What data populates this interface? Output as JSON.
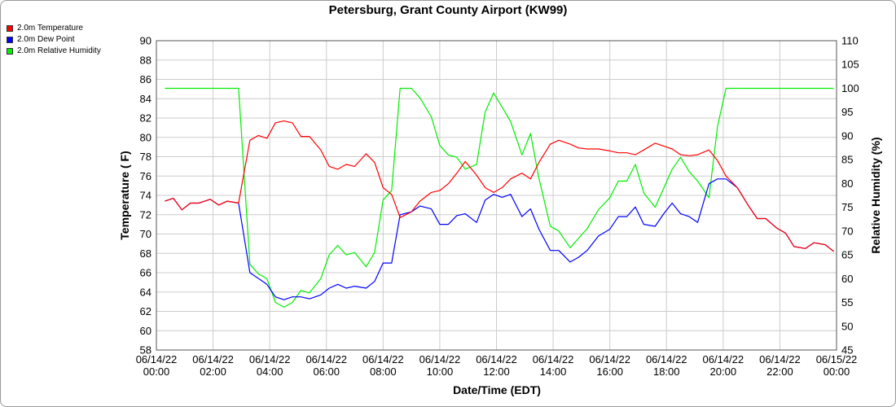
{
  "chart_data": {
    "type": "line",
    "title": "Petersburg, Grant County Airport (KW99)",
    "xlabel": "Date/Time (EDT)",
    "ylabel": "Temperature ( F)",
    "y2label": "Relative Humidity (%)",
    "ylim": [
      58,
      90
    ],
    "y2lim": [
      45,
      110
    ],
    "yticks": [
      58,
      60,
      62,
      64,
      66,
      68,
      70,
      72,
      74,
      76,
      78,
      80,
      82,
      84,
      86,
      88,
      90
    ],
    "y2ticks": [
      45,
      50,
      55,
      60,
      65,
      70,
      75,
      80,
      85,
      90,
      95,
      100,
      105,
      110
    ],
    "xlim": [
      0,
      24
    ],
    "xticks": [
      {
        "x": 0,
        "date": "06/14/22",
        "time": "00:00"
      },
      {
        "x": 2,
        "date": "06/14/22",
        "time": "02:00"
      },
      {
        "x": 4,
        "date": "06/14/22",
        "time": "04:00"
      },
      {
        "x": 6,
        "date": "06/14/22",
        "time": "06:00"
      },
      {
        "x": 8,
        "date": "06/14/22",
        "time": "08:00"
      },
      {
        "x": 10,
        "date": "06/14/22",
        "time": "10:00"
      },
      {
        "x": 12,
        "date": "06/14/22",
        "time": "12:00"
      },
      {
        "x": 14,
        "date": "06/14/22",
        "time": "14:00"
      },
      {
        "x": 16,
        "date": "06/14/22",
        "time": "16:00"
      },
      {
        "x": 18,
        "date": "06/14/22",
        "time": "18:00"
      },
      {
        "x": 20,
        "date": "06/14/22",
        "time": "20:00"
      },
      {
        "x": 22,
        "date": "06/14/22",
        "time": "22:00"
      },
      {
        "x": 24,
        "date": "06/15/22",
        "time": "00:00"
      }
    ],
    "grid": true,
    "legend_position": "top-left",
    "series": [
      {
        "name": "2.0m Temperature",
        "color": "#ff0000",
        "axis": "left",
        "points": [
          [
            0.3,
            73.4
          ],
          [
            0.6,
            73.7
          ],
          [
            0.9,
            72.5
          ],
          [
            1.2,
            73.2
          ],
          [
            1.5,
            73.2
          ],
          [
            1.9,
            73.6
          ],
          [
            2.2,
            73.0
          ],
          [
            2.5,
            73.4
          ],
          [
            2.9,
            73.2
          ],
          [
            3.3,
            79.7
          ],
          [
            3.6,
            80.2
          ],
          [
            3.9,
            79.9
          ],
          [
            4.2,
            81.5
          ],
          [
            4.5,
            81.7
          ],
          [
            4.8,
            81.5
          ],
          [
            5.1,
            80.1
          ],
          [
            5.4,
            80.1
          ],
          [
            5.8,
            78.7
          ],
          [
            6.1,
            77.0
          ],
          [
            6.4,
            76.7
          ],
          [
            6.7,
            77.2
          ],
          [
            7.0,
            77.0
          ],
          [
            7.4,
            78.3
          ],
          [
            7.7,
            77.4
          ],
          [
            8.0,
            74.8
          ],
          [
            8.3,
            74.1
          ],
          [
            8.6,
            71.7
          ],
          [
            9.0,
            72.3
          ],
          [
            9.3,
            73.4
          ],
          [
            9.7,
            74.3
          ],
          [
            10.0,
            74.5
          ],
          [
            10.3,
            75.2
          ],
          [
            10.6,
            76.3
          ],
          [
            10.9,
            77.5
          ],
          [
            11.3,
            76.1
          ],
          [
            11.6,
            74.8
          ],
          [
            11.9,
            74.3
          ],
          [
            12.2,
            74.8
          ],
          [
            12.5,
            75.7
          ],
          [
            12.9,
            76.3
          ],
          [
            13.2,
            75.7
          ],
          [
            13.5,
            77.4
          ],
          [
            13.9,
            79.3
          ],
          [
            14.2,
            79.7
          ],
          [
            14.6,
            79.3
          ],
          [
            14.9,
            78.9
          ],
          [
            15.2,
            78.8
          ],
          [
            15.6,
            78.8
          ],
          [
            16.0,
            78.6
          ],
          [
            16.3,
            78.4
          ],
          [
            16.6,
            78.4
          ],
          [
            16.9,
            78.2
          ],
          [
            17.2,
            78.7
          ],
          [
            17.6,
            79.4
          ],
          [
            17.9,
            79.1
          ],
          [
            18.2,
            78.8
          ],
          [
            18.5,
            78.2
          ],
          [
            18.8,
            78.1
          ],
          [
            19.1,
            78.2
          ],
          [
            19.5,
            78.7
          ],
          [
            19.8,
            77.6
          ],
          [
            20.1,
            76.0
          ],
          [
            20.5,
            74.8
          ],
          [
            20.9,
            72.9
          ],
          [
            21.2,
            71.6
          ],
          [
            21.5,
            71.6
          ],
          [
            21.9,
            70.6
          ],
          [
            22.2,
            70.1
          ],
          [
            22.5,
            68.7
          ],
          [
            22.9,
            68.5
          ],
          [
            23.2,
            69.1
          ],
          [
            23.6,
            68.9
          ],
          [
            23.9,
            68.2
          ]
        ]
      },
      {
        "name": "2.0m Dew Point",
        "color": "#0000ff",
        "axis": "left",
        "points": [
          [
            0.3,
            73.4
          ],
          [
            0.6,
            73.7
          ],
          [
            0.9,
            72.5
          ],
          [
            1.2,
            73.2
          ],
          [
            1.5,
            73.2
          ],
          [
            1.9,
            73.6
          ],
          [
            2.2,
            73.0
          ],
          [
            2.5,
            73.4
          ],
          [
            2.9,
            73.2
          ],
          [
            3.3,
            66.0
          ],
          [
            3.6,
            65.4
          ],
          [
            3.9,
            64.8
          ],
          [
            4.2,
            63.5
          ],
          [
            4.5,
            63.2
          ],
          [
            4.8,
            63.5
          ],
          [
            5.1,
            63.5
          ],
          [
            5.4,
            63.3
          ],
          [
            5.8,
            63.7
          ],
          [
            6.1,
            64.4
          ],
          [
            6.4,
            64.8
          ],
          [
            6.7,
            64.4
          ],
          [
            7.0,
            64.6
          ],
          [
            7.4,
            64.4
          ],
          [
            7.7,
            65.1
          ],
          [
            8.0,
            67.0
          ],
          [
            8.3,
            67.0
          ],
          [
            8.6,
            72.0
          ],
          [
            9.0,
            72.3
          ],
          [
            9.3,
            72.9
          ],
          [
            9.7,
            72.6
          ],
          [
            10.0,
            71.0
          ],
          [
            10.3,
            71.0
          ],
          [
            10.6,
            71.9
          ],
          [
            10.9,
            72.1
          ],
          [
            11.3,
            71.2
          ],
          [
            11.6,
            73.5
          ],
          [
            11.9,
            74.1
          ],
          [
            12.2,
            73.8
          ],
          [
            12.5,
            74.1
          ],
          [
            12.9,
            71.8
          ],
          [
            13.2,
            72.6
          ],
          [
            13.5,
            70.5
          ],
          [
            13.9,
            68.3
          ],
          [
            14.2,
            68.3
          ],
          [
            14.6,
            67.1
          ],
          [
            14.9,
            67.6
          ],
          [
            15.2,
            68.3
          ],
          [
            15.6,
            69.8
          ],
          [
            16.0,
            70.5
          ],
          [
            16.3,
            71.8
          ],
          [
            16.6,
            71.8
          ],
          [
            16.9,
            72.8
          ],
          [
            17.2,
            71.0
          ],
          [
            17.6,
            70.8
          ],
          [
            17.9,
            72.1
          ],
          [
            18.2,
            73.2
          ],
          [
            18.5,
            72.1
          ],
          [
            18.8,
            71.8
          ],
          [
            19.1,
            71.2
          ],
          [
            19.5,
            75.2
          ],
          [
            19.8,
            75.7
          ],
          [
            20.1,
            75.7
          ],
          [
            20.5,
            74.8
          ],
          [
            20.9,
            72.9
          ],
          [
            21.2,
            71.6
          ],
          [
            21.5,
            71.6
          ],
          [
            21.9,
            70.6
          ],
          [
            22.2,
            70.1
          ],
          [
            22.5,
            68.7
          ],
          [
            22.9,
            68.5
          ],
          [
            23.2,
            69.1
          ],
          [
            23.6,
            68.9
          ],
          [
            23.9,
            68.2
          ]
        ]
      },
      {
        "name": "2.0m Relative Humidity",
        "color": "#00ee00",
        "axis": "right",
        "points": [
          [
            0.3,
            100
          ],
          [
            1.0,
            100
          ],
          [
            2.0,
            100
          ],
          [
            2.9,
            100
          ],
          [
            3.3,
            63
          ],
          [
            3.6,
            61
          ],
          [
            3.9,
            60
          ],
          [
            4.2,
            55
          ],
          [
            4.5,
            54
          ],
          [
            4.8,
            55
          ],
          [
            5.1,
            57.5
          ],
          [
            5.4,
            57
          ],
          [
            5.8,
            60
          ],
          [
            6.1,
            65
          ],
          [
            6.4,
            67
          ],
          [
            6.7,
            65
          ],
          [
            7.0,
            65.5
          ],
          [
            7.4,
            62.5
          ],
          [
            7.7,
            65.5
          ],
          [
            8.0,
            76.5
          ],
          [
            8.3,
            78.5
          ],
          [
            8.6,
            100
          ],
          [
            9.0,
            100
          ],
          [
            9.3,
            98
          ],
          [
            9.7,
            94
          ],
          [
            10.0,
            88
          ],
          [
            10.3,
            86
          ],
          [
            10.6,
            85.5
          ],
          [
            10.9,
            83
          ],
          [
            11.3,
            84
          ],
          [
            11.6,
            95
          ],
          [
            11.9,
            99
          ],
          [
            12.2,
            96
          ],
          [
            12.5,
            93
          ],
          [
            12.9,
            86
          ],
          [
            13.2,
            90.5
          ],
          [
            13.5,
            81
          ],
          [
            13.9,
            71
          ],
          [
            14.2,
            70
          ],
          [
            14.6,
            66.5
          ],
          [
            14.9,
            68.5
          ],
          [
            15.2,
            70.5
          ],
          [
            15.6,
            74.5
          ],
          [
            16.0,
            77
          ],
          [
            16.3,
            80.5
          ],
          [
            16.6,
            80.5
          ],
          [
            16.9,
            84
          ],
          [
            17.2,
            78
          ],
          [
            17.6,
            75
          ],
          [
            17.9,
            79
          ],
          [
            18.2,
            83
          ],
          [
            18.5,
            85.5
          ],
          [
            18.8,
            82.5
          ],
          [
            19.1,
            80.5
          ],
          [
            19.5,
            77
          ],
          [
            19.8,
            92
          ],
          [
            20.1,
            100
          ],
          [
            21.0,
            100
          ],
          [
            22.0,
            100
          ],
          [
            23.0,
            100
          ],
          [
            23.9,
            100
          ]
        ]
      }
    ]
  }
}
